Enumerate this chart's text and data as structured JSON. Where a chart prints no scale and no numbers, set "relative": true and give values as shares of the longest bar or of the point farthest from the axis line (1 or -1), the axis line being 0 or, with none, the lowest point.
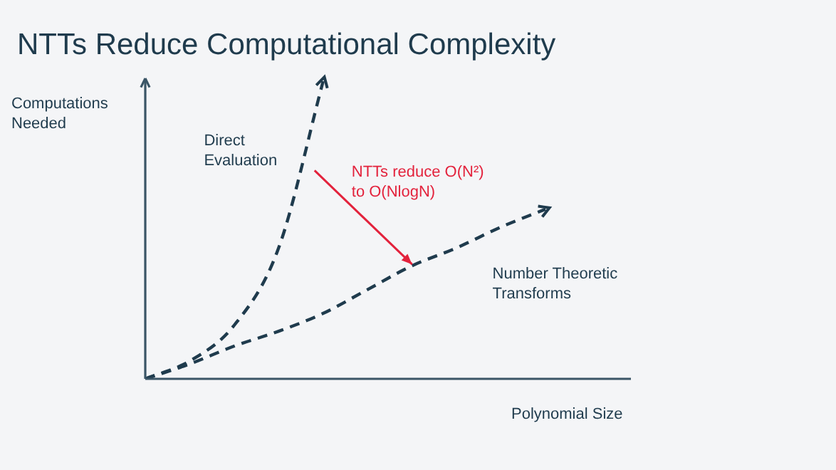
{
  "chart_data": {
    "type": "line",
    "title": "NTTs Reduce Computational Complexity",
    "xlabel": "Polynomial Size",
    "ylabel": "Computations\nNeeded",
    "relative": true,
    "legend": false,
    "grid": false,
    "marker": "none",
    "line_style": "dashed",
    "categories": [
      null,
      null,
      null,
      null,
      null,
      null,
      null,
      null,
      null,
      null
    ],
    "series": [
      {
        "name": "Direct Evaluation",
        "color": "#1f3b4d",
        "values": [
          0,
          0.06,
          0.18,
          0.44,
          1.0,
          null,
          null,
          null,
          null,
          null
        ]
      },
      {
        "name": "Number Theoretic Transforms",
        "color": "#1f3b4d",
        "values": [
          0,
          0.05,
          0.11,
          0.16,
          0.22,
          0.3,
          0.38,
          0.44,
          0.51,
          0.57
        ]
      }
    ],
    "annotations": [
      "NTTs reduce O(N²) to O(NlogN)"
    ]
  }
}
